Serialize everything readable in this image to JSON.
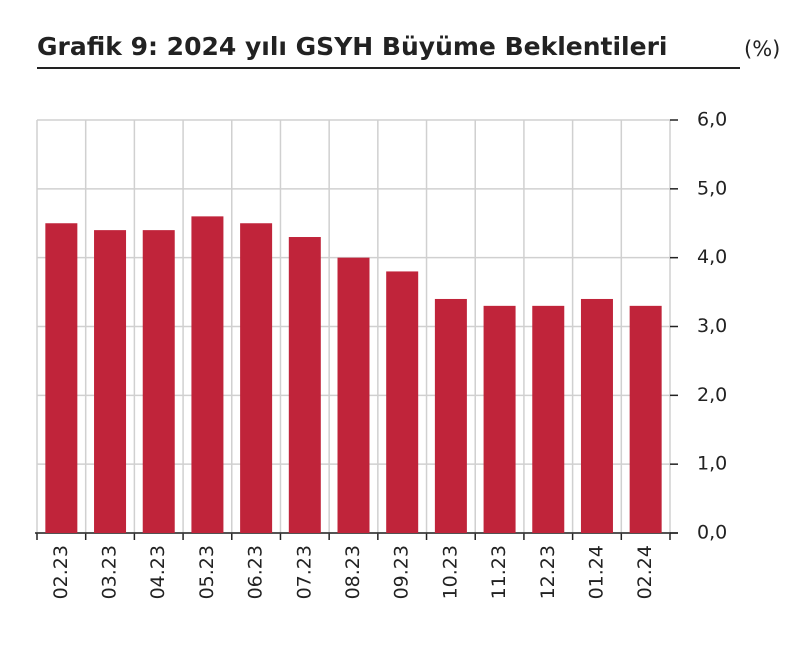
{
  "chart_data": {
    "type": "bar",
    "title": "Grafik 9: 2024 yılı GSYH Büyüme Beklentileri",
    "ylabel": "(%)",
    "categories": [
      "02.23",
      "03.23",
      "04.23",
      "05.23",
      "06.23",
      "07.23",
      "08.23",
      "09.23",
      "10.23",
      "11.23",
      "12.23",
      "01.24",
      "02.24"
    ],
    "values": [
      4.5,
      4.4,
      4.4,
      4.6,
      4.5,
      4.3,
      4.0,
      3.8,
      3.4,
      3.3,
      3.3,
      3.4,
      3.3
    ],
    "color": "#c0243a",
    "ylim": [
      0,
      6
    ],
    "yticks": [
      {
        "value": 0,
        "label": "0,0"
      },
      {
        "value": 1,
        "label": "1,0"
      },
      {
        "value": 2,
        "label": "2,0"
      },
      {
        "value": 3,
        "label": "3,0"
      },
      {
        "value": 4,
        "label": "4,0"
      },
      {
        "value": 5,
        "label": "5,0"
      },
      {
        "value": 6,
        "label": "6,0"
      }
    ],
    "grid": true
  }
}
